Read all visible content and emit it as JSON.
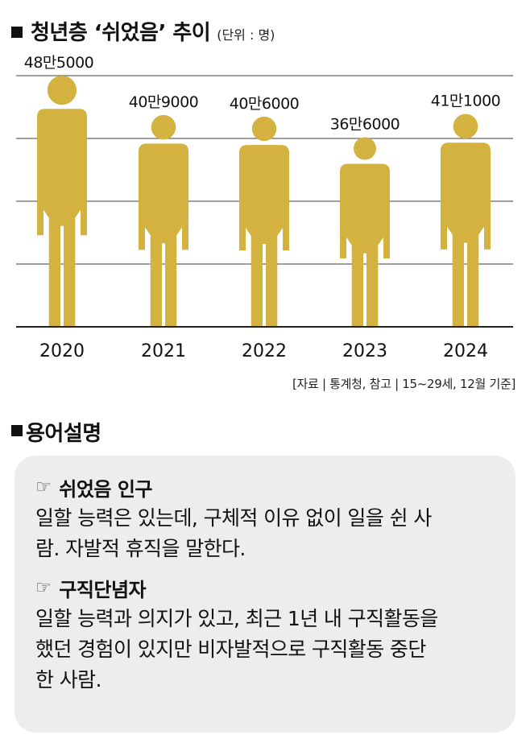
{
  "header": {
    "title": "청년층 ‘쉬었음’ 추이",
    "unit": "(단위 : 명)"
  },
  "source": "[자료 | 통계청, 참고 | 15~29세, 12월 기준]",
  "chart_data": {
    "type": "bar",
    "categories": [
      "2020",
      "2021",
      "2022",
      "2023",
      "2024"
    ],
    "values": [
      485000,
      409000,
      406000,
      366000,
      411000
    ],
    "data_labels": [
      "48만5000",
      "40만9000",
      "40만6000",
      "36만6000",
      "41만1000"
    ],
    "title": "청년층 ‘쉬었음’ 추이",
    "xlabel": "",
    "ylabel": "",
    "unit": "명",
    "ylim": [
      0,
      500000
    ],
    "grid": true,
    "mark": "person-pictogram",
    "color": "#d4b23f"
  },
  "glossary": {
    "section_title": "용어설명",
    "hand_icon": "pointing-hand-icon",
    "items": [
      {
        "term": "쉬었음 인구",
        "lines": [
          "일할 능력은 있는데, 구체적 이유 없이 일을 쉰 사",
          "람. 자발적 휴직을 말한다."
        ]
      },
      {
        "term": "구직단념자",
        "lines": [
          "일할 능력과 의지가 있고, 최근 1년 내 구직활동을",
          "했던 경험이 있지만 비자발적으로 구직활동 중단",
          "한 사람."
        ]
      }
    ]
  },
  "colors": {
    "bar": "#d4b23f",
    "grid": "#555555",
    "panel": "#ededed"
  }
}
